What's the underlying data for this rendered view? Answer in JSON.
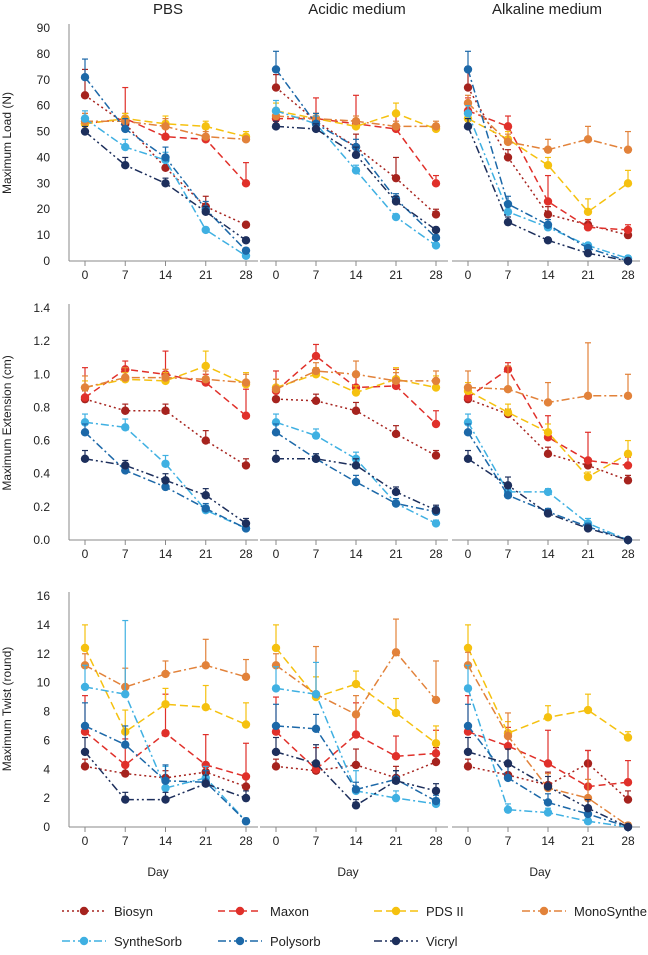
{
  "chart_data": {
    "type": "line",
    "days": [
      0,
      7,
      14,
      21,
      28
    ],
    "xlabel": "Day",
    "columns": [
      "PBS",
      "Acidic medium",
      "Alkaline medium"
    ],
    "series": [
      {
        "name": "Biosyn",
        "color": "#a6231e",
        "dash": "2,3"
      },
      {
        "name": "Maxon",
        "color": "#e0302a",
        "dash": "7,4"
      },
      {
        "name": "PDS II",
        "color": "#f5c10f",
        "dash": "8,4"
      },
      {
        "name": "MonoSynthe",
        "color": "#e2823a",
        "dash": "8,3,2,3"
      },
      {
        "name": "SyntheSorb",
        "color": "#3fb0e2",
        "dash": "8,3,2,3"
      },
      {
        "name": "Polysorb",
        "color": "#1c68a8",
        "dash": "8,3,2,3"
      },
      {
        "name": "Vicryl",
        "color": "#1d2f5c",
        "dash": "8,3,2,3,2,3"
      }
    ],
    "rows": [
      {
        "ylabel": "Maximum Load (N)",
        "yticks": [
          "0",
          "10",
          "20",
          "30",
          "40",
          "50",
          "60",
          "70",
          "80",
          "90"
        ],
        "ylim": [
          0,
          90
        ],
        "panels": [
          {
            "values": [
              [
                64,
                53,
                36,
                21,
                14
              ],
              [
                53,
                55,
                48,
                47,
                30
              ],
              [
                53,
                55,
                53,
                52,
                48
              ],
              [
                54,
                54,
                52,
                48,
                47
              ],
              [
                55,
                44,
                39,
                12,
                2
              ],
              [
                71,
                51,
                40,
                20,
                4
              ],
              [
                50,
                37,
                30,
                19,
                8
              ]
            ],
            "errors": [
              [
                10,
                4,
                3,
                4,
                1
              ],
              [
                4,
                12,
                6,
                4,
                8
              ],
              [
                3,
                2,
                3,
                2,
                2
              ],
              [
                3,
                2,
                3,
                2,
                1
              ],
              [
                3,
                3,
                3,
                1,
                1
              ],
              [
                7,
                4,
                4,
                3,
                1
              ],
              [
                2,
                3,
                2,
                2,
                1
              ]
            ]
          },
          {
            "values": [
              [
                67,
                54,
                44,
                32,
                18
              ],
              [
                55,
                55,
                53,
                51,
                30
              ],
              [
                58,
                55,
                52,
                57,
                51
              ],
              [
                56,
                55,
                54,
                52,
                52
              ],
              [
                58,
                53,
                35,
                17,
                6
              ],
              [
                74,
                53,
                44,
                24,
                9
              ],
              [
                52,
                51,
                41,
                23,
                12
              ]
            ],
            "errors": [
              [
                5,
                3,
                5,
                8,
                2
              ],
              [
                3,
                8,
                11,
                6,
                3
              ],
              [
                3,
                2,
                2,
                4,
                2
              ],
              [
                3,
                2,
                2,
                2,
                2
              ],
              [
                4,
                3,
                2,
                1,
                1
              ],
              [
                7,
                4,
                3,
                2,
                1
              ],
              [
                2,
                2,
                3,
                2,
                1
              ]
            ]
          },
          {
            "values": [
              [
                67,
                40,
                18,
                14,
                10
              ],
              [
                58,
                52,
                23,
                13,
                12
              ],
              [
                55,
                47,
                37,
                19,
                30
              ],
              [
                61,
                46,
                43,
                47,
                43
              ],
              [
                57,
                19,
                13,
                6,
                1
              ],
              [
                74,
                22,
                14,
                5,
                0
              ],
              [
                52,
                15,
                8,
                3,
                0
              ]
            ],
            "errors": [
              [
                8,
                3,
                3,
                2,
                1
              ],
              [
                5,
                4,
                10,
                3,
                2
              ],
              [
                3,
                3,
                3,
                5,
                5
              ],
              [
                3,
                3,
                4,
                5,
                7
              ],
              [
                3,
                2,
                2,
                1,
                1
              ],
              [
                7,
                3,
                2,
                1,
                1
              ],
              [
                3,
                2,
                1,
                1,
                1
              ]
            ]
          }
        ]
      },
      {
        "ylabel": "Maximum Extension (cm)",
        "yticks": [
          "0.0",
          "0.2",
          "0.4",
          "0.6",
          "0.8",
          "1.0",
          "1.2",
          "1.4"
        ],
        "ylim": [
          0,
          1.4
        ],
        "panels": [
          {
            "values": [
              [
                0.85,
                0.78,
                0.78,
                0.6,
                0.45
              ],
              [
                0.86,
                1.03,
                1.0,
                0.95,
                0.75
              ],
              [
                0.92,
                0.97,
                0.96,
                1.05,
                0.94
              ],
              [
                0.92,
                0.98,
                0.98,
                0.97,
                0.95
              ],
              [
                0.71,
                0.68,
                0.46,
                0.18,
                0.07
              ],
              [
                0.65,
                0.42,
                0.32,
                0.19,
                0.07
              ],
              [
                0.49,
                0.45,
                0.36,
                0.27,
                0.1
              ]
            ],
            "errors": [
              [
                0.05,
                0.04,
                0.04,
                0.06,
                0.04
              ],
              [
                0.18,
                0.05,
                0.14,
                0.05,
                0.16
              ],
              [
                0.04,
                0.04,
                0.05,
                0.09,
                0.07
              ],
              [
                0.07,
                0.06,
                0.05,
                0.05,
                0.05
              ],
              [
                0.05,
                0.05,
                0.05,
                0.03,
                0.02
              ],
              [
                0.05,
                0.03,
                0.03,
                0.03,
                0.02
              ],
              [
                0.05,
                0.03,
                0.04,
                0.04,
                0.03
              ]
            ]
          },
          {
            "values": [
              [
                0.85,
                0.84,
                0.78,
                0.64,
                0.51
              ],
              [
                0.9,
                1.11,
                0.92,
                0.93,
                0.7
              ],
              [
                0.92,
                1.0,
                0.89,
                0.97,
                0.92
              ],
              [
                0.91,
                1.02,
                1.0,
                0.96,
                0.96
              ],
              [
                0.71,
                0.63,
                0.49,
                0.22,
                0.1
              ],
              [
                0.65,
                0.49,
                0.35,
                0.22,
                0.17
              ],
              [
                0.49,
                0.49,
                0.45,
                0.29,
                0.18
              ]
            ],
            "errors": [
              [
                0.06,
                0.04,
                0.05,
                0.05,
                0.03
              ],
              [
                0.12,
                0.07,
                0.08,
                0.1,
                0.08
              ],
              [
                0.05,
                0.04,
                0.04,
                0.07,
                0.07
              ],
              [
                0.06,
                0.05,
                0.08,
                0.05,
                0.06
              ],
              [
                0.05,
                0.04,
                0.04,
                0.03,
                0.02
              ],
              [
                0.05,
                0.03,
                0.04,
                0.03,
                0.03
              ],
              [
                0.05,
                0.03,
                0.04,
                0.03,
                0.03
              ]
            ]
          },
          {
            "values": [
              [
                0.85,
                0.76,
                0.52,
                0.45,
                0.36
              ],
              [
                0.86,
                1.03,
                0.62,
                0.48,
                0.45
              ],
              [
                0.9,
                0.77,
                0.65,
                0.38,
                0.52
              ],
              [
                0.92,
                0.91,
                0.83,
                0.87,
                0.87
              ],
              [
                0.71,
                0.29,
                0.29,
                0.1,
                0.0
              ],
              [
                0.65,
                0.27,
                0.17,
                0.08,
                0.0
              ],
              [
                0.49,
                0.33,
                0.16,
                0.07,
                0.0
              ]
            ],
            "errors": [
              [
                0.08,
                0.03,
                0.04,
                0.04,
                0.03
              ],
              [
                0.06,
                0.04,
                0.13,
                0.17,
                0.05
              ],
              [
                0.05,
                0.05,
                0.05,
                0.03,
                0.08
              ],
              [
                0.1,
                0.14,
                0.12,
                0.32,
                0.13
              ],
              [
                0.05,
                0.04,
                0.02,
                0.03,
                0.01
              ],
              [
                0.05,
                0.04,
                0.02,
                0.02,
                0.01
              ],
              [
                0.05,
                0.05,
                0.02,
                0.02,
                0.01
              ]
            ]
          }
        ]
      },
      {
        "ylabel": "Maximum Twist (round)",
        "yticks": [
          "0",
          "2",
          "4",
          "6",
          "8",
          "10",
          "12",
          "14",
          "16"
        ],
        "ylim": [
          0,
          16
        ],
        "panels": [
          {
            "values": [
              [
                4.2,
                3.7,
                3.4,
                3.8,
                2.8
              ],
              [
                6.6,
                4.3,
                6.5,
                4.3,
                3.5
              ],
              [
                12.4,
                6.6,
                8.5,
                8.3,
                7.1
              ],
              [
                11.2,
                9.7,
                10.6,
                11.2,
                10.4
              ],
              [
                9.7,
                9.2,
                2.7,
                3.4,
                0.4
              ],
              [
                7.0,
                5.7,
                3.2,
                3.1,
                0.4
              ],
              [
                5.2,
                1.9,
                1.9,
                3.0,
                2.0
              ]
            ],
            "errors": [
              [
                0.5,
                0.6,
                0.5,
                0.6,
                0.8
              ],
              [
                2.5,
                1.8,
                2.7,
                2.1,
                2.3
              ],
              [
                1.6,
                1.5,
                1.1,
                1.5,
                1.5
              ],
              [
                0.8,
                1.3,
                0.9,
                1.8,
                1.2
              ],
              [
                1.5,
                5.1,
                1.5,
                0.8,
                0.2
              ],
              [
                1.6,
                1.3,
                1.1,
                0.8,
                0.2
              ],
              [
                1.0,
                0.5,
                0.5,
                0.6,
                0.5
              ]
            ]
          },
          {
            "values": [
              [
                4.2,
                3.9,
                4.3,
                3.4,
                4.5
              ],
              [
                6.6,
                4.0,
                6.4,
                4.9,
                5.1
              ],
              [
                12.4,
                9.0,
                9.9,
                7.9,
                5.8
              ],
              [
                11.2,
                9.2,
                7.8,
                12.1,
                8.8
              ],
              [
                9.6,
                9.2,
                2.5,
                2.0,
                1.6
              ],
              [
                7.0,
                6.8,
                2.6,
                3.3,
                1.8
              ],
              [
                5.2,
                4.4,
                1.5,
                3.2,
                2.5
              ]
            ],
            "errors": [
              [
                0.5,
                0.5,
                1.1,
                0.8,
                1.0
              ],
              [
                2.4,
                1.5,
                2.2,
                1.4,
                1.6
              ],
              [
                1.6,
                1.4,
                0.9,
                1.0,
                1.2
              ],
              [
                0.8,
                3.3,
                1.3,
                2.3,
                2.7
              ],
              [
                1.5,
                2.2,
                1.4,
                0.5,
                0.4
              ],
              [
                1.5,
                1.0,
                0.5,
                0.6,
                0.4
              ],
              [
                1.0,
                1.3,
                0.4,
                0.7,
                0.5
              ]
            ]
          },
          {
            "values": [
              [
                4.2,
                3.6,
                2.9,
                4.4,
                1.9
              ],
              [
                6.6,
                5.6,
                4.4,
                2.8,
                3.1
              ],
              [
                12.4,
                6.5,
                7.6,
                8.1,
                6.2
              ],
              [
                11.2,
                6.3,
                2.7,
                2.0,
                0.1
              ],
              [
                9.6,
                1.2,
                1.0,
                0.4,
                0.0
              ],
              [
                7.0,
                3.4,
                1.7,
                0.9,
                0.0
              ],
              [
                5.2,
                4.4,
                2.8,
                1.3,
                0.0
              ]
            ],
            "errors": [
              [
                0.5,
                0.6,
                0.9,
                0.9,
                0.6
              ],
              [
                2.5,
                1.3,
                2.3,
                2.5,
                1.5
              ],
              [
                1.6,
                0.8,
                0.8,
                1.1,
                0.4
              ],
              [
                0.9,
                1.6,
                1.0,
                1.3,
                0.2
              ],
              [
                1.6,
                0.4,
                0.3,
                0.2,
                0.1
              ],
              [
                1.5,
                1.0,
                0.6,
                0.4,
                0.1
              ],
              [
                1.0,
                1.0,
                0.7,
                0.6,
                0.1
              ]
            ]
          }
        ]
      }
    ]
  }
}
